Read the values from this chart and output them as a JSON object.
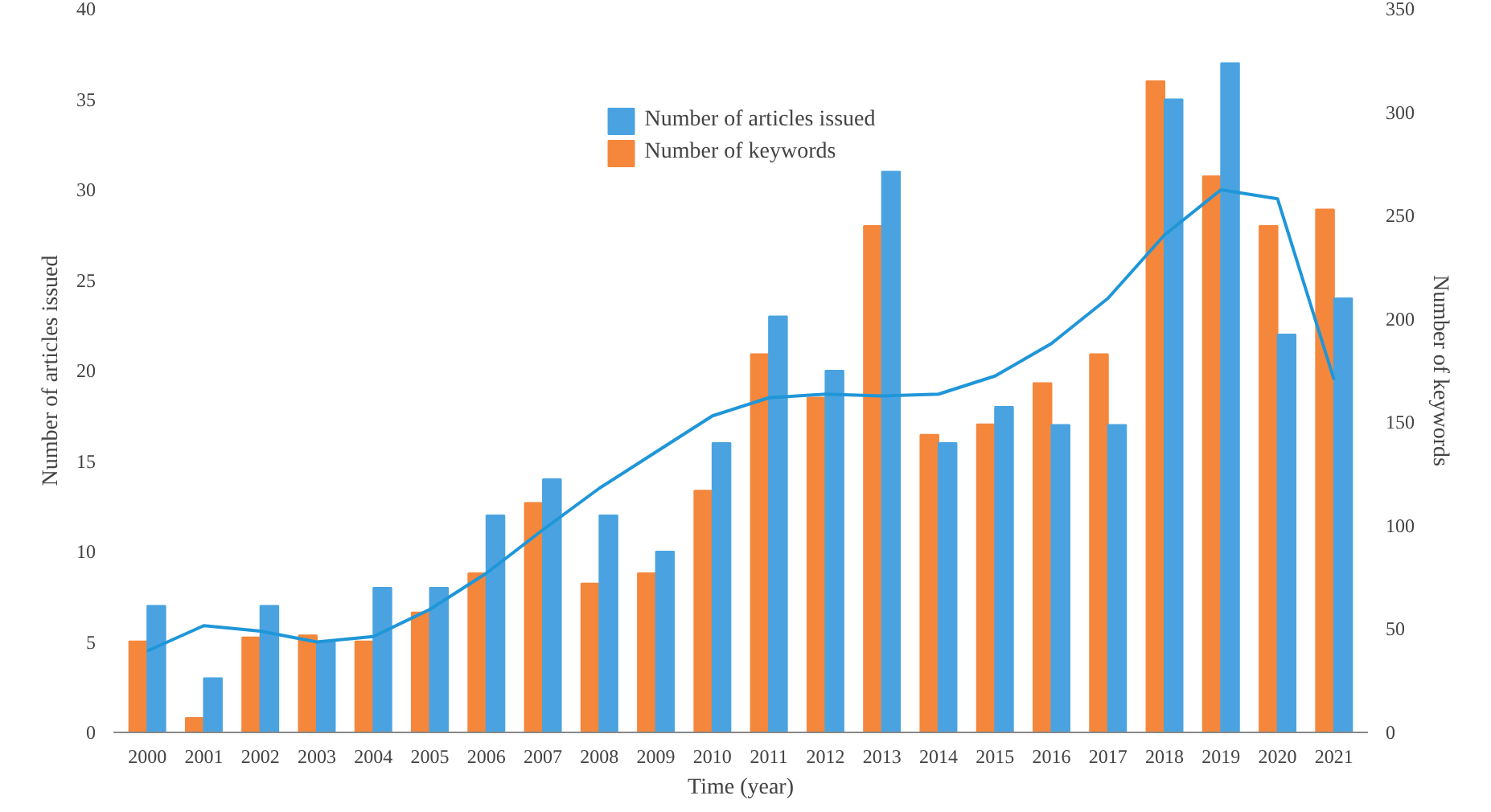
{
  "chart_data": {
    "type": "bar",
    "xlabel": "Time (year)",
    "ylabel": "Number of articles issued",
    "y2label": "Number of keywords",
    "categories": [
      "2000",
      "2001",
      "2002",
      "2003",
      "2004",
      "2005",
      "2006",
      "2007",
      "2008",
      "2009",
      "2010",
      "2011",
      "2012",
      "2013",
      "2014",
      "2015",
      "2016",
      "2017",
      "2018",
      "2019",
      "2020",
      "2021"
    ],
    "series": [
      {
        "name": "Number of keywords",
        "color": "#f4873c",
        "values": [
          44,
          7,
          46,
          47,
          44,
          58,
          77,
          111,
          72,
          77,
          117,
          183,
          162,
          245,
          144,
          149,
          169,
          183,
          315,
          269,
          245,
          253
        ],
        "axis": "y2"
      },
      {
        "name": "Number of articles issued",
        "color": "#4aa3e0",
        "values": [
          7,
          3,
          7,
          5,
          8,
          8,
          12,
          14,
          12,
          10,
          16,
          23,
          20,
          31,
          16,
          18,
          17,
          17,
          35,
          37,
          22,
          24
        ]
      },
      {
        "type": "line",
        "color": "#1f96d8",
        "values": [
          4.5,
          5.9,
          5.6,
          5.0,
          5.3,
          6.8,
          8.8,
          11.2,
          13.5,
          15.5,
          17.5,
          18.5,
          18.7,
          18.6,
          18.7,
          19.7,
          21.5,
          24,
          27.5,
          30,
          29.5,
          19.5
        ]
      }
    ],
    "ylim": [
      0,
      40
    ],
    "yticks": [
      0,
      5,
      10,
      15,
      20,
      25,
      30,
      35,
      40
    ],
    "y2lim": [
      0,
      350
    ],
    "y2ticks": [
      0,
      50,
      100,
      150,
      200,
      250,
      300,
      350
    ],
    "legend": "top",
    "grid": false
  }
}
